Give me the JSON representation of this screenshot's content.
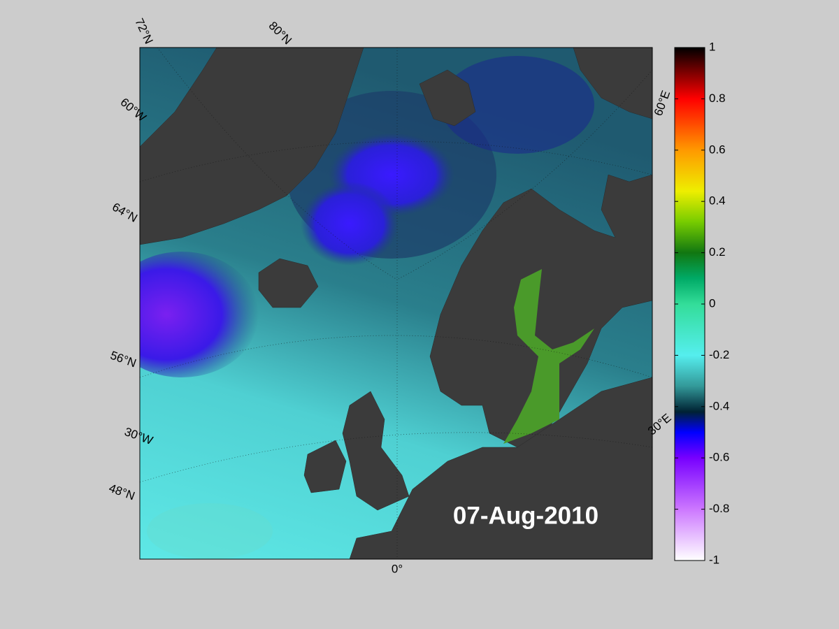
{
  "map": {
    "date": "07-Aug-2010",
    "graticule_labels": [
      "72°N",
      "80°N",
      "60°W",
      "64°N",
      "56°N",
      "30°W",
      "48°N",
      "60°E",
      "30°E",
      "0°"
    ]
  },
  "colorbar": {
    "lim": [
      -1,
      1
    ],
    "ticks": [
      1,
      0.8,
      0.6,
      0.4,
      0.2,
      0,
      -0.2,
      -0.4,
      -0.6,
      -0.8,
      -1
    ]
  }
}
